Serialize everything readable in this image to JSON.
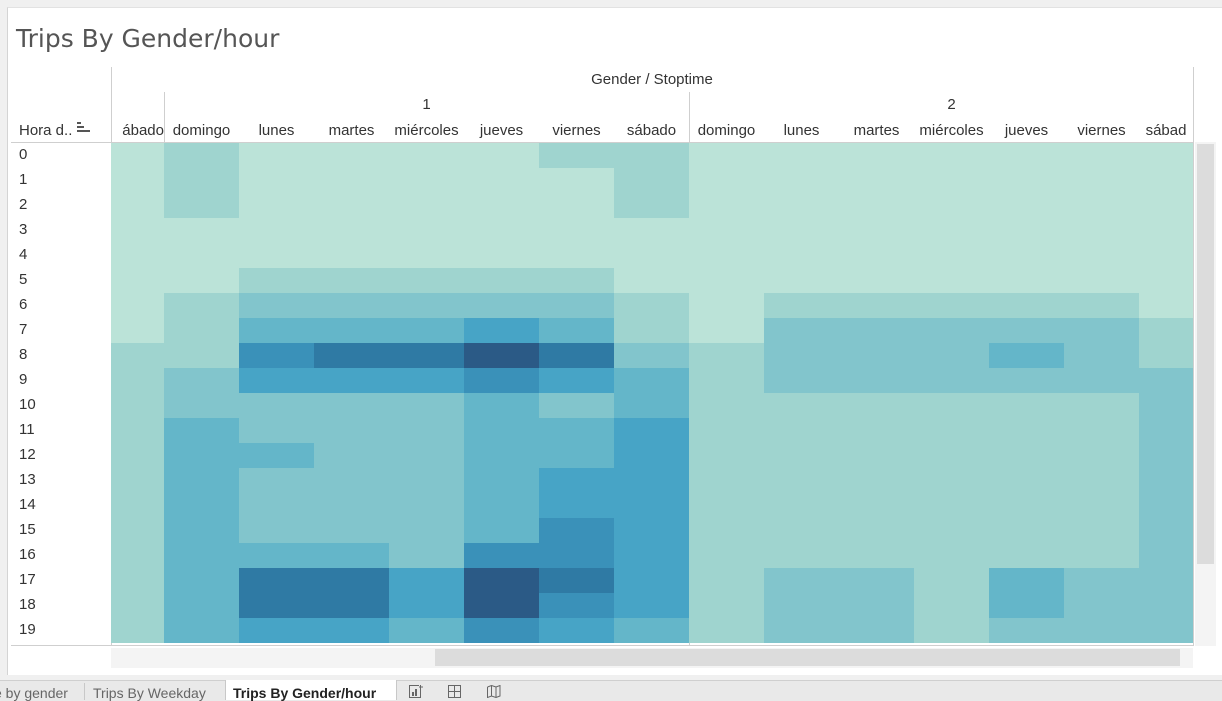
{
  "sheet_title": "Trips By Gender/hour",
  "header": {
    "group_title": "Gender / Stoptime",
    "gender_1": "1",
    "gender_2": "2",
    "row_axis_label": "Hora d..",
    "partial_left": "ábado",
    "days_1": [
      "domingo",
      "lunes",
      "martes",
      "miércoles",
      "jueves",
      "viernes",
      "sábado"
    ],
    "days_2": [
      "domingo",
      "lunes",
      "martes",
      "miércoles",
      "jueves",
      "viernes"
    ],
    "partial_right": "sábad"
  },
  "hours": [
    "0",
    "1",
    "2",
    "3",
    "4",
    "5",
    "6",
    "7",
    "8",
    "9",
    "10",
    "11",
    "12",
    "13",
    "14",
    "15",
    "16",
    "17",
    "18",
    "19"
  ],
  "colors": {
    "scale": [
      "#bbe3d8",
      "#9fd4cf",
      "#82c5cc",
      "#64b6c9",
      "#47a4c6",
      "#3a91b9",
      "#2f7aa4",
      "#2b5a86"
    ]
  },
  "chart_data": {
    "type": "heatmap",
    "title": "Trips By Gender/hour",
    "columns_title": "Gender / Stoptime",
    "rows_title": "Hora d..",
    "columns": [
      "1 ábado (partial)",
      "1 domingo",
      "1 lunes",
      "1 martes",
      "1 miércoles",
      "1 jueves",
      "1 viernes",
      "1 sábado",
      "2 domingo",
      "2 lunes",
      "2 martes",
      "2 miércoles",
      "2 jueves",
      "2 viernes",
      "2 sábado (partial)"
    ],
    "rows": [
      "0",
      "1",
      "2",
      "3",
      "4",
      "5",
      "6",
      "7",
      "8",
      "9",
      "10",
      "11",
      "12",
      "13",
      "14",
      "15",
      "16",
      "17",
      "18",
      "19"
    ],
    "intensity_scale": "0 = lightest (#bbe3d8) … 7 = darkest (#2b5a86)",
    "values": [
      [
        0,
        1,
        0,
        0,
        0,
        0,
        1,
        1,
        0,
        0,
        0,
        0,
        0,
        0,
        0
      ],
      [
        0,
        1,
        0,
        0,
        0,
        0,
        0,
        1,
        0,
        0,
        0,
        0,
        0,
        0,
        0
      ],
      [
        0,
        1,
        0,
        0,
        0,
        0,
        0,
        1,
        0,
        0,
        0,
        0,
        0,
        0,
        0
      ],
      [
        0,
        0,
        0,
        0,
        0,
        0,
        0,
        0,
        0,
        0,
        0,
        0,
        0,
        0,
        0
      ],
      [
        0,
        0,
        0,
        0,
        0,
        0,
        0,
        0,
        0,
        0,
        0,
        0,
        0,
        0,
        0
      ],
      [
        0,
        0,
        1,
        1,
        1,
        1,
        1,
        0,
        0,
        0,
        0,
        0,
        0,
        0,
        0
      ],
      [
        0,
        1,
        2,
        2,
        2,
        2,
        2,
        1,
        0,
        1,
        1,
        1,
        1,
        1,
        0
      ],
      [
        0,
        1,
        3,
        3,
        3,
        4,
        3,
        1,
        0,
        2,
        2,
        2,
        2,
        2,
        1
      ],
      [
        1,
        1,
        5,
        6,
        6,
        7,
        6,
        2,
        1,
        2,
        2,
        2,
        3,
        2,
        1
      ],
      [
        1,
        2,
        4,
        4,
        4,
        5,
        4,
        3,
        1,
        2,
        2,
        2,
        2,
        2,
        2
      ],
      [
        1,
        2,
        2,
        2,
        2,
        3,
        2,
        3,
        1,
        1,
        1,
        1,
        1,
        1,
        2
      ],
      [
        1,
        3,
        2,
        2,
        2,
        3,
        3,
        4,
        1,
        1,
        1,
        1,
        1,
        1,
        2
      ],
      [
        1,
        3,
        3,
        2,
        2,
        3,
        3,
        4,
        1,
        1,
        1,
        1,
        1,
        1,
        2
      ],
      [
        1,
        3,
        2,
        2,
        2,
        3,
        4,
        4,
        1,
        1,
        1,
        1,
        1,
        1,
        2
      ],
      [
        1,
        3,
        2,
        2,
        2,
        3,
        4,
        4,
        1,
        1,
        1,
        1,
        1,
        1,
        2
      ],
      [
        1,
        3,
        2,
        2,
        2,
        3,
        5,
        4,
        1,
        1,
        1,
        1,
        1,
        1,
        2
      ],
      [
        1,
        3,
        3,
        3,
        2,
        5,
        5,
        4,
        1,
        1,
        1,
        1,
        1,
        1,
        2
      ],
      [
        1,
        3,
        6,
        6,
        4,
        7,
        6,
        4,
        1,
        2,
        2,
        1,
        3,
        2,
        2
      ],
      [
        1,
        3,
        6,
        6,
        4,
        7,
        5,
        4,
        1,
        2,
        2,
        1,
        3,
        2,
        2
      ],
      [
        1,
        3,
        4,
        4,
        3,
        5,
        4,
        3,
        1,
        2,
        2,
        1,
        2,
        2,
        2
      ]
    ]
  },
  "tabs": {
    "tab_partial": "e by gender",
    "tab_weekday": "Trips By Weekday",
    "tab_active": "Trips By Gender/hour"
  },
  "icons": {
    "sort": "sort-descending-icon",
    "new_sheet": "new-worksheet-icon",
    "new_dashboard": "new-dashboard-icon",
    "new_story": "new-story-icon"
  }
}
